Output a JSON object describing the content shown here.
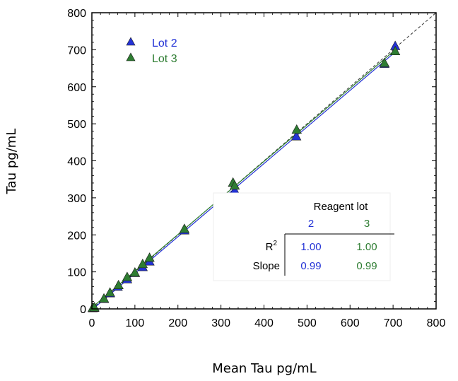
{
  "chart_data": {
    "type": "scatter",
    "xlabel": "Mean Tau pg/mL",
    "ylabel": "Tau pg/mL",
    "xlim": [
      0,
      800
    ],
    "ylim": [
      0,
      800
    ],
    "x_ticks": [
      "0",
      "100",
      "200",
      "300",
      "400",
      "500",
      "600",
      "700",
      "800"
    ],
    "y_ticks": [
      "0",
      "100",
      "200",
      "300",
      "400",
      "500",
      "600",
      "700",
      "800"
    ],
    "identity_line": true,
    "legend_position": "top-left",
    "series": [
      {
        "name": "Lot 2",
        "color": "#2433d6",
        "points": [
          [
            2,
            2
          ],
          [
            5,
            3
          ],
          [
            28,
            27
          ],
          [
            42,
            42
          ],
          [
            60,
            60
          ],
          [
            82,
            80
          ],
          [
            100,
            97
          ],
          [
            118,
            113
          ],
          [
            134,
            128
          ],
          [
            215,
            212
          ],
          [
            328,
            306
          ],
          [
            332,
            320
          ],
          [
            475,
            466
          ],
          [
            680,
            662
          ],
          [
            705,
            710
          ]
        ]
      },
      {
        "name": "Lot 3",
        "color": "#2e7d32",
        "points": [
          [
            2,
            3
          ],
          [
            6,
            4
          ],
          [
            28,
            28
          ],
          [
            42,
            44
          ],
          [
            62,
            64
          ],
          [
            82,
            86
          ],
          [
            100,
            98
          ],
          [
            118,
            121
          ],
          [
            134,
            138
          ],
          [
            215,
            216
          ],
          [
            328,
            341
          ],
          [
            332,
            333
          ],
          [
            476,
            484
          ],
          [
            680,
            664
          ],
          [
            705,
            696
          ]
        ]
      }
    ],
    "fit_table": {
      "title": "Reagent lot",
      "columns": [
        "2",
        "3"
      ],
      "rows": [
        {
          "label": "R",
          "sup": "2",
          "values": [
            "1.00",
            "1.00"
          ]
        },
        {
          "label": "Slope",
          "sup": "",
          "values": [
            "0.99",
            "0.99"
          ]
        }
      ]
    }
  }
}
